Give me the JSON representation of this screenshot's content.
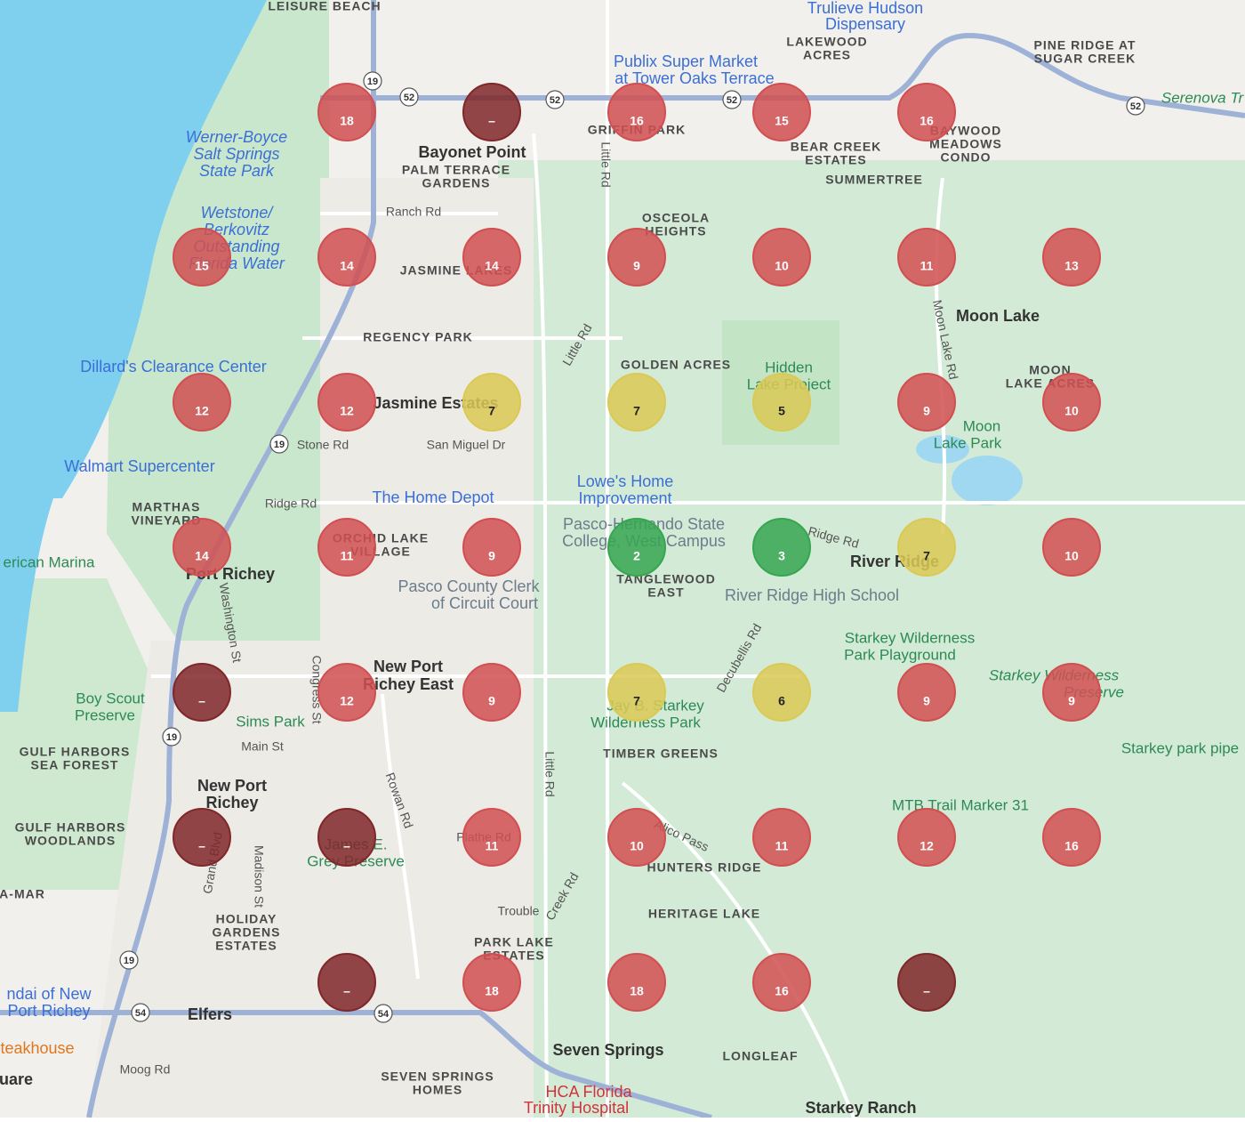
{
  "markers": {
    "rows": [
      [
        null,
        {
          "rank": 18,
          "color": "#e9585a"
        },
        {
          "rank": "–",
          "color": "#8e2b2e"
        },
        {
          "rank": 16,
          "color": "#e9585a"
        },
        {
          "rank": 15,
          "color": "#e9585a"
        },
        {
          "rank": 16,
          "color": "#e9585a"
        },
        null
      ],
      [
        {
          "rank": 15,
          "color": "#e9585a"
        },
        {
          "rank": 14,
          "color": "#e9585a"
        },
        {
          "rank": 14,
          "color": "#e9585a"
        },
        {
          "rank": 9,
          "color": "#e9585a"
        },
        {
          "rank": 10,
          "color": "#e9585a"
        },
        {
          "rank": 11,
          "color": "#e9585a"
        },
        {
          "rank": 13,
          "color": "#e9585a"
        }
      ],
      [
        {
          "rank": 12,
          "color": "#e9585a"
        },
        {
          "rank": 12,
          "color": "#e9585a"
        },
        {
          "rank": 7,
          "color": "#f3df5e"
        },
        {
          "rank": 7,
          "color": "#f3df5e"
        },
        {
          "rank": 5,
          "color": "#f3df5e"
        },
        {
          "rank": 9,
          "color": "#e9585a"
        },
        {
          "rank": 10,
          "color": "#e9585a"
        }
      ],
      [
        {
          "rank": 14,
          "color": "#e9585a"
        },
        {
          "rank": 11,
          "color": "#e9585a"
        },
        {
          "rank": 9,
          "color": "#e9585a"
        },
        {
          "rank": 2,
          "color": "#3cb85a"
        },
        {
          "rank": 3,
          "color": "#3cb85a"
        },
        {
          "rank": 7,
          "color": "#f3df5e"
        },
        {
          "rank": 10,
          "color": "#e9585a"
        }
      ],
      [
        {
          "rank": "–",
          "color": "#8e2b2e"
        },
        {
          "rank": 12,
          "color": "#e9585a"
        },
        {
          "rank": 9,
          "color": "#e9585a"
        },
        {
          "rank": 7,
          "color": "#f3df5e"
        },
        {
          "rank": 6,
          "color": "#f3df5e"
        },
        {
          "rank": 9,
          "color": "#e9585a"
        },
        {
          "rank": 9,
          "color": "#e9585a"
        }
      ],
      [
        {
          "rank": "–",
          "color": "#8e2b2e"
        },
        {
          "rank": "–",
          "color": "#8e2b2e"
        },
        {
          "rank": 11,
          "color": "#e9585a"
        },
        {
          "rank": 10,
          "color": "#e9585a"
        },
        {
          "rank": 11,
          "color": "#e9585a"
        },
        {
          "rank": 12,
          "color": "#e9585a"
        },
        {
          "rank": 16,
          "color": "#e9585a"
        }
      ],
      [
        null,
        {
          "rank": "–",
          "color": "#8e2b2e"
        },
        {
          "rank": 18,
          "color": "#e9585a"
        },
        {
          "rank": 18,
          "color": "#e9585a"
        },
        {
          "rank": 16,
          "color": "#e9585a"
        },
        {
          "rank": "–",
          "color": "#8e2b2e"
        },
        null
      ]
    ]
  },
  "map_labels": [
    "LEISURE BEACH",
    "Trulieve Hudson",
    "Dispensary",
    "LAKEWOOD",
    "ACRES",
    "PINE RIDGE AT",
    "SUGAR CREEK",
    "Publix Super Market",
    "at Tower Oaks Terrace",
    "Serenova Tr",
    "Werner-Boyce",
    "Salt Springs",
    "State Park",
    "Bayonet Point",
    "PALM TERRACE",
    "GARDENS",
    "GRIFFIN PARK",
    "BEAR CREEK",
    "ESTATES",
    "BAYWOOD",
    "MEADOWS",
    "CONDO",
    "SUMMERTREE",
    "Ranch Rd",
    "Little Rd",
    "OSCEOLA",
    "HEIGHTS",
    "Wetstone/",
    "Berkovitz",
    "Outstanding",
    "Florida Water",
    "JASMINE LAKES",
    "Moon Lake",
    "REGENCY PARK",
    "Little Rd",
    "GOLDEN ACRES",
    "Hidden",
    "Lake Project",
    "Moon Lake Rd",
    "MOON",
    "LAKE ACRES",
    "Dillard's Clearance Center",
    "Jasmine Estates",
    "Stone Rd",
    "San Miguel Dr",
    "Moon",
    "Lake Park",
    "Walmart Supercenter",
    "Lowe's Home",
    "Improvement",
    "The Home Depot",
    "Ridge Rd",
    "MARTHAS",
    "VINEYARD",
    "Pasco-Hernando State",
    "College, West Campus",
    "Ridge Rd",
    "River Ridge",
    "ORCHID LAKE",
    "VILLAGE",
    "erican Marina",
    "Port Richey",
    "TANGLEWOOD",
    "EAST",
    "Pasco County Clerk",
    "of Circuit Court",
    "River Ridge High School",
    "Starkey Wilderness",
    "Park Playground",
    "Washington St",
    "Congress St",
    "Decubellis Rd",
    "New Port",
    "Richey East",
    "Starkey Wilderness",
    "Preserve",
    "Boy Scout",
    "Preserve",
    "Sims Park",
    "Jay B. Starkey",
    "Wilderness Park",
    "Main St",
    "GULF HARBORS",
    "SEA FOREST",
    "Starkey park pipe",
    "TIMBER GREENS",
    "New Port",
    "Richey",
    "Rowan Rd",
    "Little Rd",
    "MTB Trail Marker 31",
    "GULF HARBORS",
    "WOODLANDS",
    "James E.",
    "Grey Preserve",
    "Plathe Rd",
    "Alico Pass",
    "HUNTERS RIDGE",
    "Grand Blvd",
    "Madison St",
    "A-MAR",
    "Trouble",
    "Creek Rd",
    "HERITAGE LAKE",
    "HOLIDAY",
    "GARDENS",
    "ESTATES",
    "PARK LAKE",
    "ESTATES",
    "ndai of New",
    "Port Richey",
    "Elfers",
    "teakhouse",
    "Seven Springs",
    "LONGLEAF",
    "Moog Rd",
    "uare",
    "SEVEN SPRINGS",
    "HOMES",
    "HCA Florida",
    "Trinity Hospital",
    "Starkey Ranch"
  ],
  "route_shields": [
    "19",
    "52",
    "52",
    "52",
    "52",
    "19",
    "19",
    "19",
    "54",
    "54"
  ]
}
